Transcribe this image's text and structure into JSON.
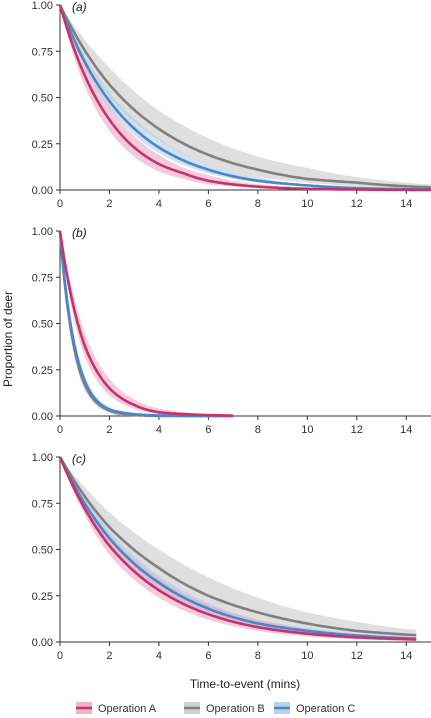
{
  "colors": {
    "series": [
      "#c8326c",
      "#808080",
      "#4a86c8"
    ],
    "bands": [
      "#e8a3bf",
      "#c4c4c4",
      "#a9c8e8"
    ],
    "axis": "#333333"
  },
  "ylabel": "Proportion of deer",
  "xlabel": "Time-to-event (mins)",
  "legend": {
    "placement": "bottom",
    "entries": [
      "Operation A",
      "Operation B",
      "Operation C"
    ]
  },
  "chart_data": [
    {
      "type": "line",
      "panel": "(a)",
      "xlim": [
        0,
        15
      ],
      "ylim": [
        0,
        1
      ],
      "xticks": [
        "0",
        "2",
        "4",
        "6",
        "8",
        "10",
        "12",
        "14"
      ],
      "yticks": [
        "0.00",
        "0.25",
        "0.50",
        "0.75",
        "1.00"
      ],
      "series": [
        {
          "name": "Operation A",
          "t": [
            0,
            1,
            2,
            3,
            4,
            5,
            6,
            7
          ],
          "y": [
            1.0,
            0.62,
            0.38,
            0.23,
            0.14,
            0.09,
            0.05,
            0.03
          ],
          "lo": [
            1.0,
            0.56,
            0.32,
            0.18,
            0.1,
            0.06,
            0.03,
            0.02
          ],
          "hi": [
            1.0,
            0.68,
            0.45,
            0.29,
            0.19,
            0.12,
            0.08,
            0.05
          ],
          "x_end": 15
        },
        {
          "name": "Operation B",
          "t": [
            0,
            2,
            4,
            6,
            8,
            10,
            12,
            14
          ],
          "y": [
            1.0,
            0.57,
            0.33,
            0.19,
            0.11,
            0.06,
            0.04,
            0.02
          ],
          "lo": [
            1.0,
            0.5,
            0.27,
            0.14,
            0.07,
            0.04,
            0.02,
            0.01
          ],
          "hi": [
            1.0,
            0.66,
            0.43,
            0.28,
            0.18,
            0.12,
            0.07,
            0.04
          ],
          "x_end": 15
        },
        {
          "name": "Operation C",
          "t": [
            0,
            2,
            4,
            6,
            8,
            10,
            12
          ],
          "y": [
            1.0,
            0.48,
            0.23,
            0.11,
            0.05,
            0.025,
            0.01
          ],
          "lo": [
            1.0,
            0.44,
            0.2,
            0.09,
            0.04,
            0.02,
            0.01
          ],
          "hi": [
            1.0,
            0.53,
            0.28,
            0.14,
            0.07,
            0.03,
            0.02
          ],
          "x_end": 15
        }
      ]
    },
    {
      "type": "line",
      "panel": "(b)",
      "xlim": [
        0,
        15
      ],
      "ylim": [
        0,
        1
      ],
      "xticks": [
        "0",
        "2",
        "4",
        "6",
        "8",
        "10",
        "12",
        "14"
      ],
      "yticks": [
        "0.00",
        "0.25",
        "0.50",
        "0.75",
        "1.00"
      ],
      "series": [
        {
          "name": "Operation A",
          "t": [
            0,
            0.5,
            1,
            1.5,
            2,
            3,
            4,
            5
          ],
          "y": [
            1.0,
            0.62,
            0.38,
            0.24,
            0.15,
            0.06,
            0.02,
            0.01
          ],
          "lo": [
            1.0,
            0.56,
            0.32,
            0.19,
            0.11,
            0.04,
            0.01,
            0.0
          ],
          "hi": [
            1.0,
            0.68,
            0.45,
            0.3,
            0.2,
            0.09,
            0.04,
            0.02
          ],
          "x_end": 7
        },
        {
          "name": "Operation B",
          "t": [
            0,
            0.5,
            1,
            1.5,
            2,
            3
          ],
          "y": [
            1.0,
            0.42,
            0.17,
            0.07,
            0.03,
            0.005
          ],
          "lo": [
            1.0,
            0.38,
            0.14,
            0.05,
            0.02,
            0.0
          ],
          "hi": [
            1.0,
            0.47,
            0.21,
            0.09,
            0.04,
            0.01
          ],
          "x_end": 7
        },
        {
          "name": "Operation C",
          "t": [
            0,
            0.5,
            1,
            1.5,
            2,
            3
          ],
          "y": [
            1.0,
            0.44,
            0.19,
            0.08,
            0.035,
            0.01
          ],
          "lo": [
            1.0,
            0.4,
            0.16,
            0.06,
            0.02,
            0.0
          ],
          "hi": [
            1.0,
            0.48,
            0.22,
            0.1,
            0.05,
            0.01
          ],
          "x_end": 7
        }
      ]
    },
    {
      "type": "line",
      "panel": "(c)",
      "xlim": [
        0,
        15
      ],
      "ylim": [
        0,
        1
      ],
      "xticks": [
        "0",
        "2",
        "4",
        "6",
        "8",
        "10",
        "12",
        "14"
      ],
      "yticks": [
        "0.00",
        "0.25",
        "0.50",
        "0.75",
        "1.00"
      ],
      "series": [
        {
          "name": "Operation A",
          "t": [
            0,
            2,
            4,
            6,
            8,
            10,
            12,
            14
          ],
          "y": [
            1.0,
            0.52,
            0.28,
            0.15,
            0.08,
            0.045,
            0.025,
            0.015
          ],
          "lo": [
            1.0,
            0.47,
            0.24,
            0.12,
            0.06,
            0.03,
            0.015,
            0.008
          ],
          "hi": [
            1.0,
            0.58,
            0.34,
            0.2,
            0.12,
            0.07,
            0.04,
            0.025
          ],
          "x_end": 14.4
        },
        {
          "name": "Operation B",
          "t": [
            0,
            2,
            4,
            6,
            8,
            10,
            12,
            14
          ],
          "y": [
            1.0,
            0.62,
            0.4,
            0.25,
            0.16,
            0.1,
            0.06,
            0.04
          ],
          "lo": [
            1.0,
            0.55,
            0.32,
            0.19,
            0.11,
            0.06,
            0.035,
            0.02
          ],
          "hi": [
            1.0,
            0.7,
            0.5,
            0.35,
            0.24,
            0.16,
            0.11,
            0.07
          ],
          "x_end": 14.4
        },
        {
          "name": "Operation C",
          "t": [
            0,
            2,
            4,
            6,
            8,
            10,
            12,
            14
          ],
          "y": [
            1.0,
            0.56,
            0.32,
            0.18,
            0.1,
            0.06,
            0.035,
            0.02
          ],
          "lo": [
            1.0,
            0.52,
            0.28,
            0.15,
            0.08,
            0.045,
            0.025,
            0.015
          ],
          "hi": [
            1.0,
            0.6,
            0.36,
            0.21,
            0.12,
            0.075,
            0.045,
            0.03
          ],
          "x_end": 14.4
        }
      ]
    }
  ]
}
